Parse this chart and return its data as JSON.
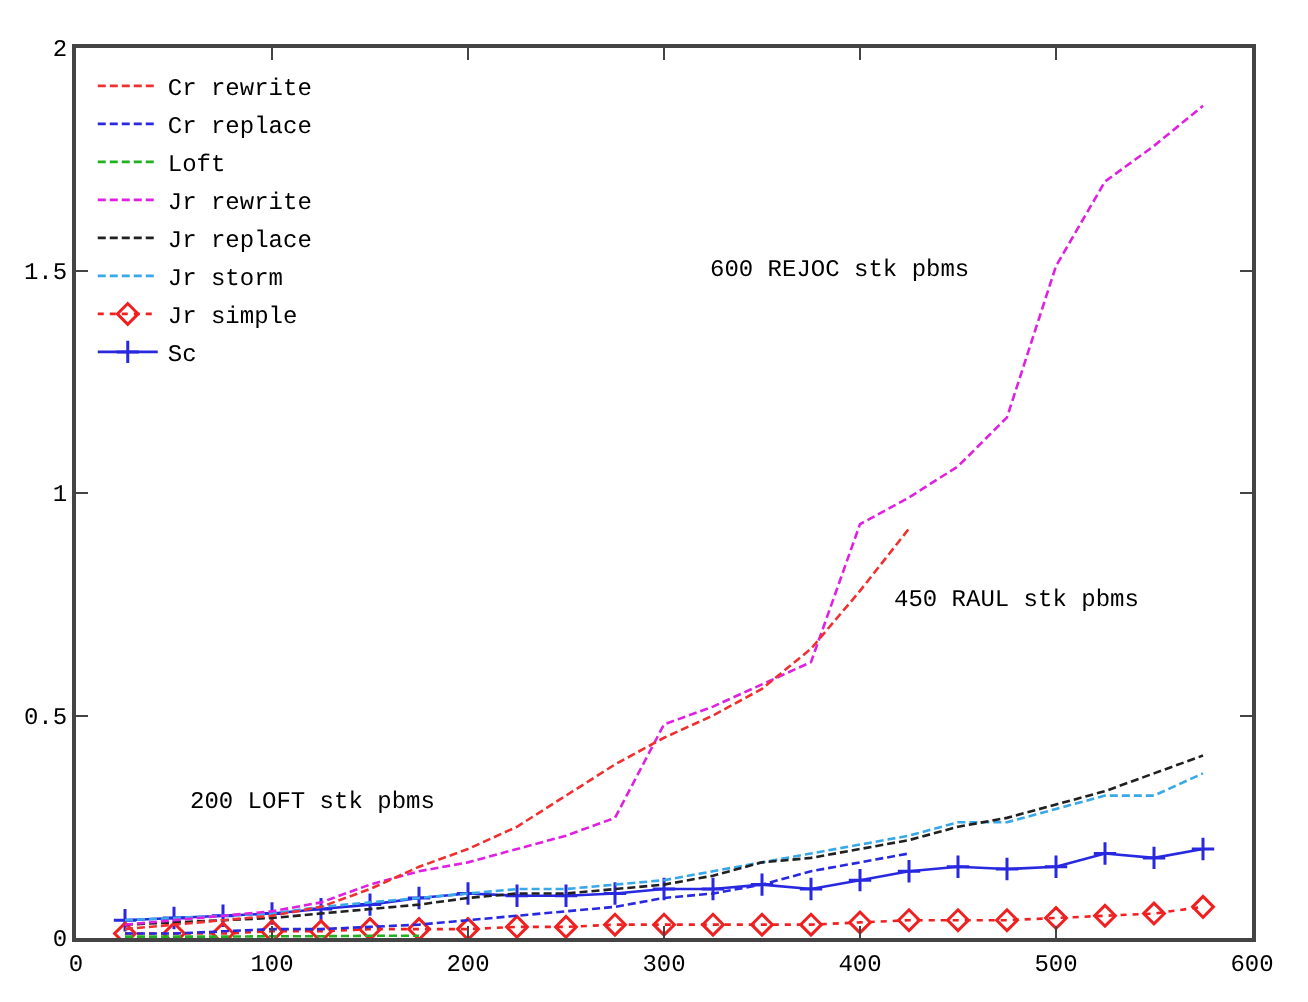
{
  "chart_data": {
    "type": "line",
    "xlim": [
      0,
      600
    ],
    "xticks": [
      0,
      100,
      200,
      300,
      400,
      500,
      600
    ],
    "ylim": [
      0,
      2
    ],
    "yticks": [
      0,
      0.5,
      1,
      1.5,
      2
    ],
    "grid": false,
    "legend": "top left",
    "marker": "none",
    "series": [
      {
        "name": "Cr rewrite",
        "color": "#f03030",
        "line_style": "dashed",
        "x": [
          25,
          50,
          75,
          100,
          125,
          150,
          175,
          200,
          225,
          250,
          275,
          300,
          325,
          350,
          375,
          400,
          425
        ],
        "values": [
          0.02,
          0.03,
          0.04,
          0.05,
          0.07,
          0.11,
          0.16,
          0.2,
          0.25,
          0.32,
          0.39,
          0.45,
          0.5,
          0.56,
          0.65,
          0.78,
          0.92
        ]
      },
      {
        "name": "Cr replace",
        "color": "#2828e0",
        "line_style": "dashed",
        "x": [
          25,
          50,
          75,
          100,
          125,
          150,
          175,
          200,
          225,
          250,
          275,
          300,
          325,
          350,
          375,
          400,
          425
        ],
        "values": [
          0.01,
          0.01,
          0.015,
          0.02,
          0.02,
          0.025,
          0.03,
          0.04,
          0.05,
          0.06,
          0.07,
          0.09,
          0.1,
          0.12,
          0.15,
          0.17,
          0.19
        ]
      },
      {
        "name": "Loft",
        "color": "#20b020",
        "line_style": "dashed",
        "x": [
          25,
          50,
          75,
          100,
          125,
          150,
          175
        ],
        "values": [
          0.003,
          0.003,
          0.003,
          0.004,
          0.004,
          0.005,
          0.005
        ]
      },
      {
        "name": "Jr rewrite",
        "color": "#e020e0",
        "line_style": "dashed",
        "x": [
          25,
          50,
          75,
          100,
          125,
          150,
          175,
          200,
          225,
          250,
          275,
          300,
          325,
          350,
          375,
          400,
          425,
          450,
          475,
          500,
          525,
          550,
          575
        ],
        "values": [
          0.03,
          0.04,
          0.05,
          0.06,
          0.08,
          0.12,
          0.15,
          0.17,
          0.2,
          0.23,
          0.27,
          0.48,
          0.52,
          0.57,
          0.62,
          0.93,
          0.99,
          1.06,
          1.17,
          1.51,
          1.7,
          1.78,
          1.87
        ]
      },
      {
        "name": "Jr replace",
        "color": "#202020",
        "line_style": "dashed",
        "x": [
          25,
          50,
          75,
          100,
          125,
          150,
          175,
          200,
          225,
          250,
          275,
          300,
          325,
          350,
          375,
          400,
          425,
          450,
          475,
          500,
          525,
          550,
          575
        ],
        "values": [
          0.03,
          0.035,
          0.04,
          0.045,
          0.055,
          0.065,
          0.075,
          0.09,
          0.1,
          0.1,
          0.11,
          0.12,
          0.14,
          0.17,
          0.18,
          0.2,
          0.22,
          0.25,
          0.27,
          0.3,
          0.33,
          0.37,
          0.41
        ]
      },
      {
        "name": "Jr storm",
        "color": "#38a8e8",
        "line_style": "dashed",
        "x": [
          25,
          50,
          75,
          100,
          125,
          150,
          175,
          200,
          225,
          250,
          275,
          300,
          325,
          350,
          375,
          400,
          425,
          450,
          475,
          500,
          525,
          550,
          575
        ],
        "values": [
          0.04,
          0.045,
          0.05,
          0.055,
          0.07,
          0.08,
          0.09,
          0.1,
          0.11,
          0.11,
          0.12,
          0.13,
          0.15,
          0.17,
          0.19,
          0.21,
          0.23,
          0.26,
          0.26,
          0.29,
          0.32,
          0.32,
          0.37
        ]
      },
      {
        "name": "Jr simple",
        "color": "#f02020",
        "line_style": "dotted",
        "marker": "diamond",
        "x": [
          25,
          50,
          75,
          100,
          125,
          150,
          175,
          200,
          225,
          250,
          275,
          300,
          325,
          350,
          375,
          400,
          425,
          450,
          475,
          500,
          525,
          550,
          575
        ],
        "values": [
          0.01,
          0.01,
          0.01,
          0.015,
          0.015,
          0.02,
          0.02,
          0.02,
          0.025,
          0.025,
          0.03,
          0.03,
          0.03,
          0.03,
          0.03,
          0.035,
          0.04,
          0.04,
          0.04,
          0.045,
          0.05,
          0.055,
          0.07
        ]
      },
      {
        "name": "Sc",
        "color": "#2828e0",
        "line_style": "solid",
        "marker": "cross",
        "x": [
          25,
          50,
          75,
          100,
          125,
          150,
          175,
          200,
          225,
          250,
          275,
          300,
          325,
          350,
          375,
          400,
          425,
          450,
          475,
          500,
          525,
          550,
          575
        ],
        "values": [
          0.04,
          0.045,
          0.05,
          0.055,
          0.065,
          0.075,
          0.09,
          0.1,
          0.095,
          0.095,
          0.1,
          0.11,
          0.11,
          0.12,
          0.11,
          0.13,
          0.15,
          0.16,
          0.155,
          0.16,
          0.19,
          0.18,
          0.2
        ]
      }
    ],
    "annotations": [
      "600 REJOC stk pbms",
      "450 RAUL stk pbms",
      "200 LOFT stk pbms"
    ]
  }
}
